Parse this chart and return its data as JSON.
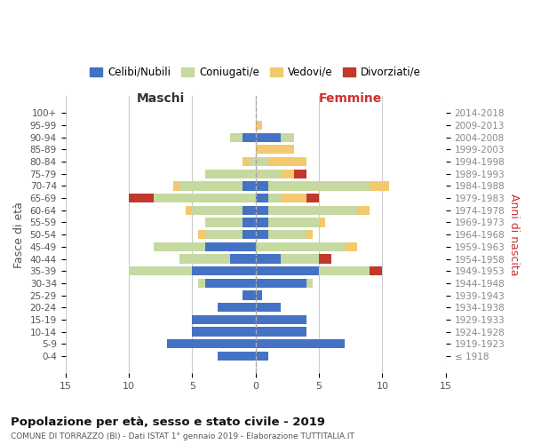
{
  "age_groups": [
    "100+",
    "95-99",
    "90-94",
    "85-89",
    "80-84",
    "75-79",
    "70-74",
    "65-69",
    "60-64",
    "55-59",
    "50-54",
    "45-49",
    "40-44",
    "35-39",
    "30-34",
    "25-29",
    "20-24",
    "15-19",
    "10-14",
    "5-9",
    "0-4"
  ],
  "birth_years": [
    "≤ 1918",
    "1919-1923",
    "1924-1928",
    "1929-1933",
    "1934-1938",
    "1939-1943",
    "1944-1948",
    "1949-1953",
    "1954-1958",
    "1959-1963",
    "1964-1968",
    "1969-1973",
    "1974-1978",
    "1979-1983",
    "1984-1988",
    "1989-1993",
    "1994-1998",
    "1999-2003",
    "2004-2008",
    "2009-2013",
    "2014-2018"
  ],
  "male": {
    "celibi": [
      0,
      0,
      1,
      0,
      0,
      0,
      1,
      0,
      1,
      1,
      1,
      4,
      2,
      5,
      4,
      1,
      3,
      5,
      5,
      7,
      3
    ],
    "coniugati": [
      0,
      0,
      1,
      0,
      0.5,
      4,
      5,
      8,
      4,
      3,
      3,
      4,
      4,
      5,
      0.5,
      0,
      0,
      0,
      0,
      0,
      0
    ],
    "vedovi": [
      0,
      0,
      0,
      0,
      0.5,
      0,
      0.5,
      0,
      0.5,
      0,
      0.5,
      0,
      0,
      0,
      0,
      0,
      0,
      0,
      0,
      0,
      0
    ],
    "divorziati": [
      0,
      0,
      0,
      0,
      0,
      0,
      0,
      2,
      0,
      0,
      0,
      0,
      0,
      0,
      0,
      0,
      0,
      0,
      0,
      0,
      0
    ]
  },
  "female": {
    "nubili": [
      0,
      0,
      2,
      0,
      0,
      0,
      1,
      1,
      1,
      1,
      1,
      0,
      2,
      5,
      4,
      0.5,
      2,
      4,
      4,
      7,
      1
    ],
    "coniugate": [
      0,
      0,
      1,
      0,
      1,
      2,
      8,
      1,
      7,
      4,
      3,
      7,
      3,
      4,
      0.5,
      0,
      0,
      0,
      0,
      0,
      0
    ],
    "vedove": [
      0,
      0.5,
      0,
      3,
      3,
      1,
      1.5,
      2,
      1,
      0.5,
      0.5,
      1,
      0,
      0,
      0,
      0,
      0,
      0,
      0,
      0,
      0
    ],
    "divorziate": [
      0,
      0,
      0,
      0,
      0,
      1,
      0,
      1,
      0,
      0,
      0,
      0,
      1,
      1,
      0,
      0,
      0,
      0,
      0,
      0,
      0
    ]
  },
  "colors": {
    "celibi": "#4472C4",
    "coniugati": "#C5D9A0",
    "vedovi": "#F2C96E",
    "divorziati": "#C0392B"
  },
  "xlim": 15,
  "title": "Popolazione per età, sesso e stato civile - 2019",
  "subtitle": "COMUNE DI TORRAZZO (BI) - Dati ISTAT 1° gennaio 2019 - Elaborazione TUTTITALIA.IT",
  "ylabel_left": "Fasce di età",
  "ylabel_right": "Anni di nascita",
  "xlabel_left": "Maschi",
  "xlabel_right": "Femmine",
  "legend_labels": [
    "Celibi/Nubili",
    "Coniugati/e",
    "Vedovi/e",
    "Divorziati/e"
  ],
  "bg_color": "#FFFFFF",
  "bar_height": 0.75,
  "grid_color": "#CCCCCC",
  "maschi_color": "#333333",
  "femmine_color": "#CC3333"
}
